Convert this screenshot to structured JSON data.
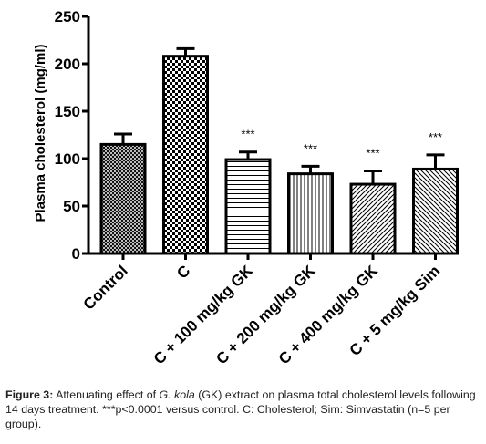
{
  "chart_data": {
    "type": "bar",
    "title": "",
    "xlabel": "",
    "ylabel": "Plasma cholesterol (mg/ml)",
    "ylim": [
      0,
      250
    ],
    "yticks": [
      0,
      50,
      100,
      150,
      200,
      250
    ],
    "categories": [
      "Control",
      "C",
      "C + 100 mg/kg GK",
      "C + 200 mg/kg GK",
      "C + 400 mg/kg GK",
      "C + 5 mg/kg Sim"
    ],
    "values": [
      115,
      208,
      99,
      84,
      73,
      89
    ],
    "errors": [
      11,
      8,
      8,
      8,
      14,
      15
    ],
    "significance": [
      "",
      "",
      "***",
      "***",
      "***",
      "***"
    ],
    "patterns": [
      "crosshatch-fine",
      "checkerboard",
      "horizontal-lines",
      "vertical-lines",
      "diagonal-right",
      "diagonal-left"
    ],
    "grid": false,
    "legend": "none"
  },
  "caption": {
    "label": "Figure 3:",
    "text_before_italic": " Attenuating effect of ",
    "italic": "G. kola",
    "text_after_italic": " (GK) extract on plasma total cholesterol levels following 14 days treatment. ***p<0.0001 versus control. C: Cholesterol; Sim: Simvastatin (n=5 per group)."
  }
}
